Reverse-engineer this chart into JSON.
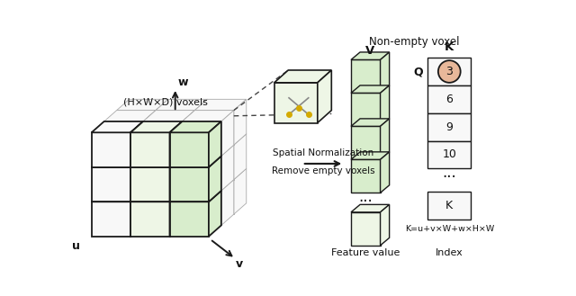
{
  "bg_color": "#ffffff",
  "voxel_fill_green": "#d8edcc",
  "voxel_fill_light": "#eef6e6",
  "voxel_fill_white": "#f8f8f8",
  "voxel_stroke": "#1a1a1a",
  "voxel_stroke_light": "#aaaaaa",
  "arrow_color": "#1a1a1a",
  "dashed_color": "#555555",
  "text_color": "#111111",
  "circle_fill": "#e8b89a",
  "circle_stroke": "#1a1a1a",
  "label_main_cube": "(H×W×D) voxels",
  "label_w": "w",
  "label_u": "u",
  "label_v": "v",
  "label_non_empty": "Non-empty voxel",
  "label_v_col": "V",
  "label_k": "K",
  "label_q": "Q",
  "label_spatial": "Spatial Normalization",
  "label_remove": "Remove empty voxels",
  "label_feature": "Feature value",
  "label_index": "Index",
  "label_formula": "K=u+v×W+w×H×W",
  "dots": "..."
}
